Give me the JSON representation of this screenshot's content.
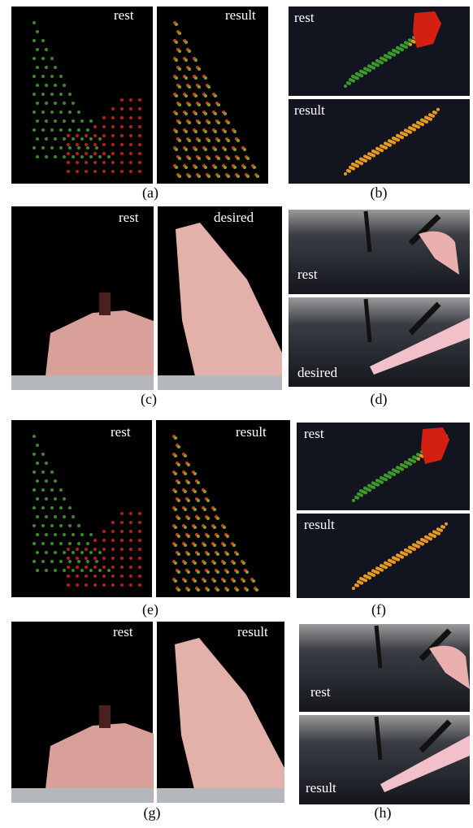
{
  "figure": {
    "panels": [
      {
        "caption": "(a)",
        "images": [
          {
            "label": "rest"
          },
          {
            "label": "result"
          }
        ]
      },
      {
        "caption": "(b)",
        "images": [
          {
            "label": "rest"
          },
          {
            "label": "result"
          }
        ]
      },
      {
        "caption": "(c)",
        "images": [
          {
            "label": "rest"
          },
          {
            "label": "desired"
          }
        ]
      },
      {
        "caption": "(d)",
        "images": [
          {
            "label": "rest"
          },
          {
            "label": "desired"
          }
        ]
      },
      {
        "caption": "(e)",
        "images": [
          {
            "label": "rest"
          },
          {
            "label": "result"
          }
        ]
      },
      {
        "caption": "(f)",
        "images": [
          {
            "label": "rest"
          },
          {
            "label": "result"
          }
        ]
      },
      {
        "caption": "(g)",
        "images": [
          {
            "label": "rest"
          },
          {
            "label": "result"
          }
        ]
      },
      {
        "caption": "(h)",
        "images": [
          {
            "label": "rest"
          },
          {
            "label": "result"
          }
        ]
      }
    ]
  }
}
